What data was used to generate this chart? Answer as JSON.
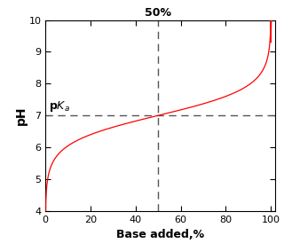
{
  "title": "",
  "xlabel": "Base added,%",
  "ylabel": "pH",
  "pka": 7,
  "ylim": [
    4,
    10
  ],
  "xlim": [
    0,
    102
  ],
  "xticks": [
    0,
    20,
    40,
    60,
    80,
    100
  ],
  "yticks": [
    4,
    5,
    6,
    7,
    8,
    9,
    10
  ],
  "curve_color": "#ff0000",
  "dashed_color": "#555555",
  "annotation_50_label": "50%",
  "background_color": "#ffffff",
  "figsize": [
    3.2,
    2.83
  ],
  "dpi": 100
}
